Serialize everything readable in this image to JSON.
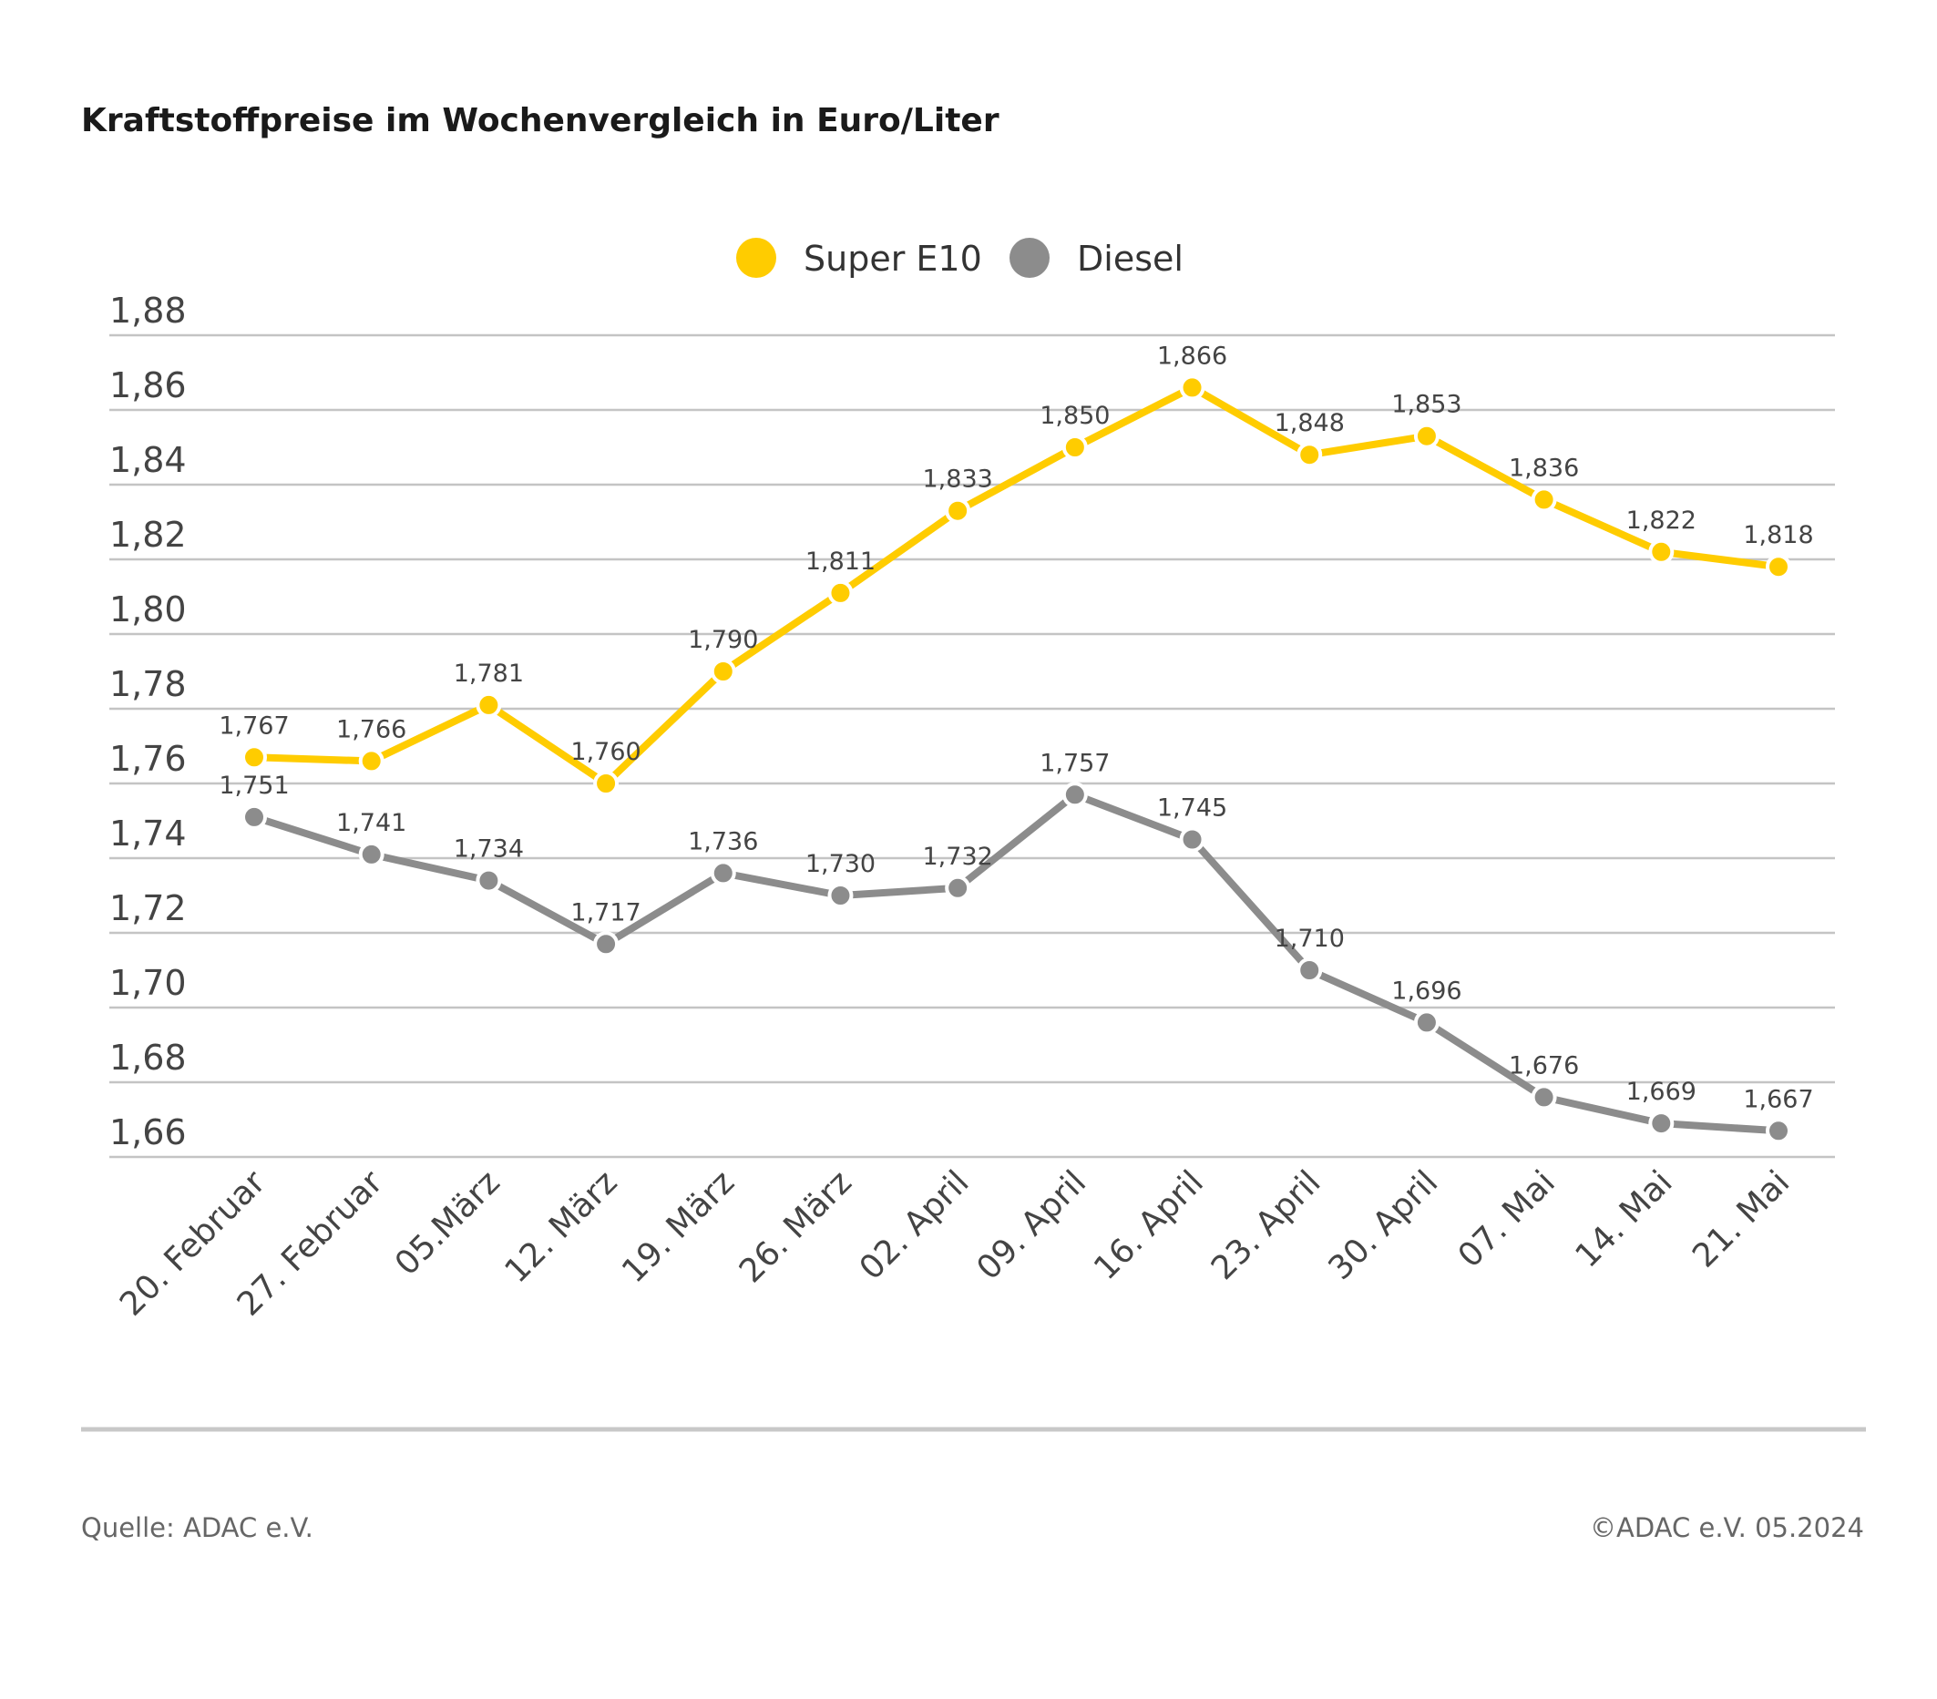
{
  "chart_data": {
    "type": "line",
    "title": "Kraftstoffpreise im Wochenvergleich in Euro/Liter",
    "xlabel": "",
    "ylabel": "",
    "ylim": [
      1.66,
      1.88
    ],
    "yticks": [
      "1,88",
      "1,86",
      "1,84",
      "1,82",
      "1,80",
      "1,78",
      "1,76",
      "1,74",
      "1,72",
      "1,70",
      "1,68",
      "1,66"
    ],
    "ytick_values": [
      1.88,
      1.86,
      1.84,
      1.82,
      1.8,
      1.78,
      1.76,
      1.74,
      1.72,
      1.7,
      1.68,
      1.66
    ],
    "grid": true,
    "legend_position": "top-center",
    "categories": [
      "20. Februar",
      "27. Februar",
      "05.März",
      "12. März",
      "19. März",
      "26. März",
      "02. April",
      "09. April",
      "16. April",
      "23. April",
      "30. April",
      "07. Mai",
      "14. Mai",
      "21. Mai"
    ],
    "series": [
      {
        "name": "Super E10",
        "color": "#FFCC00",
        "values": [
          1.767,
          1.766,
          1.781,
          1.76,
          1.79,
          1.811,
          1.833,
          1.85,
          1.866,
          1.848,
          1.853,
          1.836,
          1.822,
          1.818
        ],
        "labels": [
          "1,767",
          "1,766",
          "1,781",
          "1,760",
          "1,790",
          "1,811",
          "1,833",
          "1,850",
          "1,866",
          "1,848",
          "1,853",
          "1,836",
          "1,822",
          "1,818"
        ]
      },
      {
        "name": "Diesel",
        "color": "#8C8C8C",
        "values": [
          1.751,
          1.741,
          1.734,
          1.717,
          1.736,
          1.73,
          1.732,
          1.757,
          1.745,
          1.71,
          1.696,
          1.676,
          1.669,
          1.667
        ],
        "labels": [
          "1,751",
          "1,741",
          "1,734",
          "1,717",
          "1,736",
          "1,730",
          "1,732",
          "1,757",
          "1,745",
          "1,710",
          "1,696",
          "1,676",
          "1,669",
          "1,667"
        ]
      }
    ]
  },
  "footer": {
    "source": "Quelle: ADAC e.V.",
    "copyright": "©ADAC e.V. 05.2024"
  }
}
